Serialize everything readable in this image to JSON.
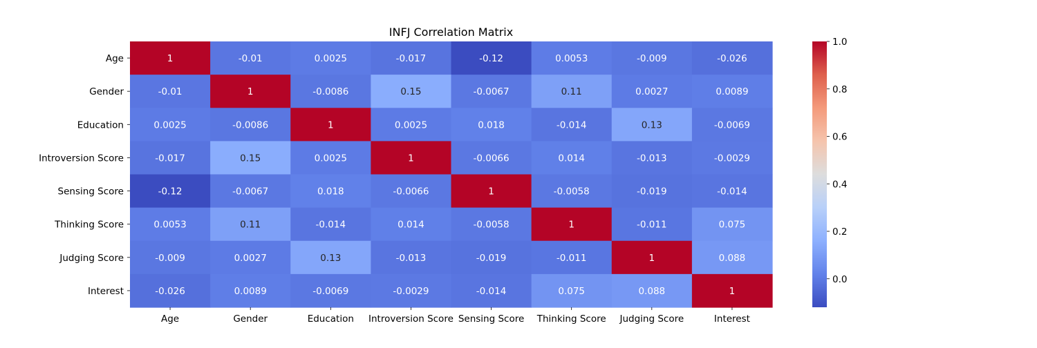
{
  "chart_data": {
    "type": "heatmap",
    "title": "INFJ Correlation Matrix",
    "xlabel": "",
    "ylabel": "",
    "x_labels": [
      "Age",
      "Gender",
      "Education",
      "Introversion Score",
      "Sensing Score",
      "Thinking Score",
      "Judging Score",
      "Interest"
    ],
    "y_labels": [
      "Age",
      "Gender",
      "Education",
      "Introversion Score",
      "Sensing Score",
      "Thinking Score",
      "Judging Score",
      "Interest"
    ],
    "values": [
      [
        1,
        -0.01,
        0.0025,
        -0.017,
        -0.12,
        0.0053,
        -0.009,
        -0.026
      ],
      [
        -0.01,
        1,
        -0.0086,
        0.15,
        -0.0067,
        0.11,
        0.0027,
        0.0089
      ],
      [
        0.0025,
        -0.0086,
        1,
        0.0025,
        0.018,
        -0.014,
        0.13,
        -0.0069
      ],
      [
        -0.017,
        0.15,
        0.0025,
        1,
        -0.0066,
        0.014,
        -0.013,
        -0.0029
      ],
      [
        -0.12,
        -0.0067,
        0.018,
        -0.0066,
        1,
        -0.0058,
        -0.019,
        -0.014
      ],
      [
        0.0053,
        0.11,
        -0.014,
        0.014,
        -0.0058,
        1,
        -0.011,
        0.075
      ],
      [
        -0.009,
        0.0027,
        0.13,
        -0.013,
        -0.019,
        -0.011,
        1,
        0.088
      ],
      [
        -0.026,
        0.0089,
        -0.0069,
        -0.0029,
        -0.014,
        0.075,
        0.088,
        1
      ]
    ],
    "annotations": [
      [
        "1",
        "-0.01",
        "0.0025",
        "-0.017",
        "-0.12",
        "0.0053",
        "-0.009",
        "-0.026"
      ],
      [
        "-0.01",
        "1",
        "-0.0086",
        "0.15",
        "-0.0067",
        "0.11",
        "0.0027",
        "0.0089"
      ],
      [
        "0.0025",
        "-0.0086",
        "1",
        "0.0025",
        "0.018",
        "-0.014",
        "0.13",
        "-0.0069"
      ],
      [
        "-0.017",
        "0.15",
        "0.0025",
        "1",
        "-0.0066",
        "0.014",
        "-0.013",
        "-0.0029"
      ],
      [
        "-0.12",
        "-0.0067",
        "0.018",
        "-0.0066",
        "1",
        "-0.0058",
        "-0.019",
        "-0.014"
      ],
      [
        "0.0053",
        "0.11",
        "-0.014",
        "0.014",
        "-0.0058",
        "1",
        "-0.011",
        "0.075"
      ],
      [
        "-0.009",
        "0.0027",
        "0.13",
        "-0.013",
        "-0.019",
        "-0.011",
        "1",
        "0.088"
      ],
      [
        "-0.026",
        "0.0089",
        "-0.0069",
        "-0.0029",
        "-0.014",
        "0.075",
        "0.088",
        "1"
      ]
    ],
    "colormap": "coolwarm",
    "vmin": -0.12,
    "vmax": 1,
    "colorbar_ticks": [
      0.0,
      0.2,
      0.4,
      0.6,
      0.8,
      1.0
    ],
    "colorbar_tick_labels": [
      "0.0",
      "0.2",
      "0.4",
      "0.6",
      "0.8",
      "1.0"
    ],
    "grid": false,
    "legend": "colorbar-right"
  }
}
